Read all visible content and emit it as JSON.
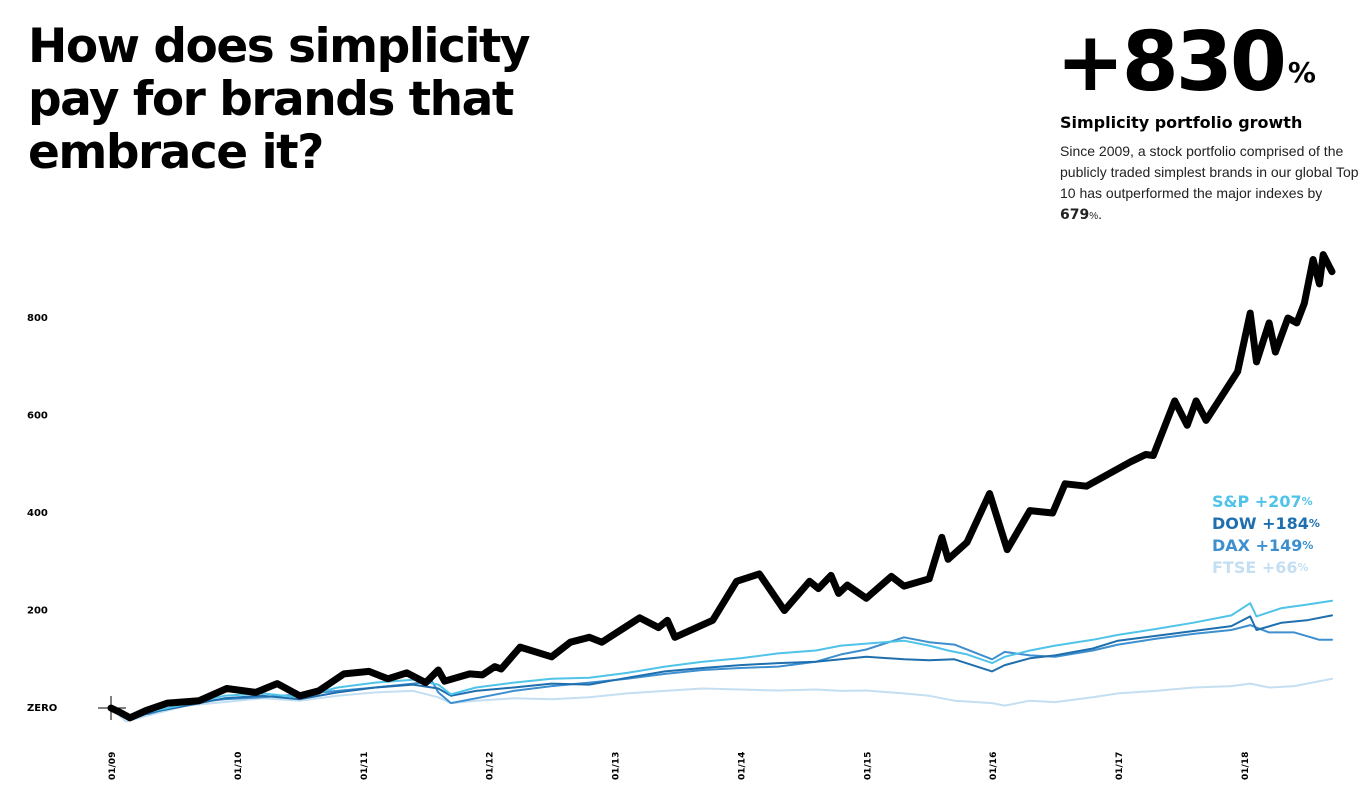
{
  "header": {
    "title": "How does simplicity pay for brands that embrace it?",
    "stat_value": "+830",
    "stat_unit": "%",
    "stat_label": "Simplicity portfolio growth",
    "description_pre": "Since 2009, a stock portfolio comprised of the publicly traded simplest brands in our global Top 10 has outperformed the major indexes by ",
    "description_value": "679",
    "description_unit": "%",
    "description_post": "."
  },
  "colors": {
    "portfolio": "#000000",
    "sp": "#4fc3e8",
    "dow": "#1f6fae",
    "dax": "#3d8fcf",
    "ftse": "#c4dff2"
  },
  "legend": [
    {
      "label": "S&P +207",
      "unit": "%",
      "color": "#4fc3e8"
    },
    {
      "label": "DOW +184",
      "unit": "%",
      "color": "#1f6fae"
    },
    {
      "label": "DAX +149",
      "unit": "%",
      "color": "#3d8fcf"
    },
    {
      "label": "FTSE +66",
      "unit": "%",
      "color": "#c4dff2"
    }
  ],
  "chart_data": {
    "type": "line",
    "x_ticks": [
      "01/09",
      "01/10",
      "01/11",
      "01/12",
      "01/13",
      "01/14",
      "01/15",
      "01/16",
      "01/17",
      "01/18"
    ],
    "y_ticks": [
      {
        "value": 0,
        "label": "ZERO"
      },
      {
        "value": 200,
        "label": "200"
      },
      {
        "value": 400,
        "label": "400"
      },
      {
        "value": 600,
        "label": "600"
      },
      {
        "value": 800,
        "label": "800"
      }
    ],
    "xlim": [
      2009.0,
      2018.7
    ],
    "ylim": [
      -60,
      930
    ],
    "grid": false,
    "legend_position": "right",
    "series": [
      {
        "key": "portfolio",
        "color": "#000000",
        "width": 7,
        "points": [
          [
            2009.0,
            0
          ],
          [
            2009.08,
            -10
          ],
          [
            2009.15,
            -20
          ],
          [
            2009.28,
            -5
          ],
          [
            2009.45,
            10
          ],
          [
            2009.7,
            15
          ],
          [
            2009.92,
            40
          ],
          [
            2010.15,
            32
          ],
          [
            2010.32,
            50
          ],
          [
            2010.5,
            25
          ],
          [
            2010.65,
            35
          ],
          [
            2010.85,
            70
          ],
          [
            2011.05,
            75
          ],
          [
            2011.2,
            60
          ],
          [
            2011.35,
            72
          ],
          [
            2011.5,
            52
          ],
          [
            2011.6,
            78
          ],
          [
            2011.65,
            55
          ],
          [
            2011.85,
            70
          ],
          [
            2011.95,
            68
          ],
          [
            2012.05,
            85
          ],
          [
            2012.1,
            80
          ],
          [
            2012.25,
            125
          ],
          [
            2012.5,
            105
          ],
          [
            2012.65,
            135
          ],
          [
            2012.8,
            145
          ],
          [
            2012.9,
            135
          ],
          [
            2013.05,
            160
          ],
          [
            2013.2,
            185
          ],
          [
            2013.35,
            165
          ],
          [
            2013.42,
            180
          ],
          [
            2013.48,
            145
          ],
          [
            2013.78,
            180
          ],
          [
            2013.97,
            260
          ],
          [
            2014.15,
            275
          ],
          [
            2014.35,
            200
          ],
          [
            2014.55,
            260
          ],
          [
            2014.62,
            245
          ],
          [
            2014.72,
            272
          ],
          [
            2014.78,
            235
          ],
          [
            2014.85,
            252
          ],
          [
            2015.0,
            225
          ],
          [
            2015.2,
            270
          ],
          [
            2015.3,
            250
          ],
          [
            2015.5,
            265
          ],
          [
            2015.6,
            350
          ],
          [
            2015.65,
            305
          ],
          [
            2015.8,
            340
          ],
          [
            2015.98,
            440
          ],
          [
            2016.12,
            325
          ],
          [
            2016.3,
            405
          ],
          [
            2016.48,
            400
          ],
          [
            2016.58,
            460
          ],
          [
            2016.75,
            455
          ],
          [
            2017.1,
            505
          ],
          [
            2017.22,
            520
          ],
          [
            2017.28,
            518
          ],
          [
            2017.45,
            630
          ],
          [
            2017.55,
            580
          ],
          [
            2017.62,
            630
          ],
          [
            2017.7,
            590
          ],
          [
            2017.95,
            690
          ],
          [
            2018.05,
            810
          ],
          [
            2018.1,
            710
          ],
          [
            2018.2,
            790
          ],
          [
            2018.25,
            730
          ],
          [
            2018.35,
            800
          ],
          [
            2018.42,
            790
          ],
          [
            2018.48,
            830
          ],
          [
            2018.55,
            920
          ],
          [
            2018.6,
            870
          ],
          [
            2018.63,
            930
          ],
          [
            2018.7,
            895
          ]
        ]
      },
      {
        "key": "sp",
        "color": "#4fc3e8",
        "width": 2,
        "points": [
          [
            2009.0,
            0
          ],
          [
            2009.12,
            -20
          ],
          [
            2009.3,
            -8
          ],
          [
            2009.6,
            8
          ],
          [
            2009.9,
            25
          ],
          [
            2010.2,
            30
          ],
          [
            2010.5,
            22
          ],
          [
            2010.8,
            42
          ],
          [
            2011.1,
            52
          ],
          [
            2011.4,
            58
          ],
          [
            2011.6,
            48
          ],
          [
            2011.7,
            28
          ],
          [
            2011.9,
            42
          ],
          [
            2012.2,
            52
          ],
          [
            2012.5,
            60
          ],
          [
            2012.8,
            62
          ],
          [
            2013.1,
            72
          ],
          [
            2013.4,
            85
          ],
          [
            2013.7,
            95
          ],
          [
            2014.0,
            102
          ],
          [
            2014.3,
            112
          ],
          [
            2014.6,
            118
          ],
          [
            2014.8,
            128
          ],
          [
            2015.0,
            132
          ],
          [
            2015.3,
            138
          ],
          [
            2015.5,
            128
          ],
          [
            2015.65,
            118
          ],
          [
            2015.8,
            110
          ],
          [
            2016.0,
            92
          ],
          [
            2016.1,
            105
          ],
          [
            2016.3,
            118
          ],
          [
            2016.5,
            128
          ],
          [
            2016.8,
            140
          ],
          [
            2017.0,
            150
          ],
          [
            2017.3,
            162
          ],
          [
            2017.6,
            175
          ],
          [
            2017.9,
            190
          ],
          [
            2018.05,
            215
          ],
          [
            2018.1,
            188
          ],
          [
            2018.3,
            205
          ],
          [
            2018.5,
            212
          ],
          [
            2018.7,
            220
          ]
        ]
      },
      {
        "key": "dow",
        "color": "#1f6fae",
        "width": 2,
        "points": [
          [
            2009.0,
            0
          ],
          [
            2009.15,
            -25
          ],
          [
            2009.3,
            -10
          ],
          [
            2009.6,
            5
          ],
          [
            2009.9,
            20
          ],
          [
            2010.2,
            25
          ],
          [
            2010.5,
            18
          ],
          [
            2010.8,
            32
          ],
          [
            2011.1,
            42
          ],
          [
            2011.4,
            48
          ],
          [
            2011.6,
            40
          ],
          [
            2011.7,
            25
          ],
          [
            2011.9,
            35
          ],
          [
            2012.2,
            42
          ],
          [
            2012.5,
            50
          ],
          [
            2012.8,
            48
          ],
          [
            2013.1,
            62
          ],
          [
            2013.4,
            75
          ],
          [
            2013.7,
            82
          ],
          [
            2014.0,
            88
          ],
          [
            2014.3,
            92
          ],
          [
            2014.6,
            95
          ],
          [
            2014.8,
            100
          ],
          [
            2015.0,
            105
          ],
          [
            2015.3,
            100
          ],
          [
            2015.5,
            98
          ],
          [
            2015.7,
            100
          ],
          [
            2016.0,
            75
          ],
          [
            2016.1,
            88
          ],
          [
            2016.3,
            102
          ],
          [
            2016.5,
            108
          ],
          [
            2016.8,
            122
          ],
          [
            2017.0,
            138
          ],
          [
            2017.3,
            148
          ],
          [
            2017.6,
            158
          ],
          [
            2017.9,
            168
          ],
          [
            2018.05,
            188
          ],
          [
            2018.1,
            160
          ],
          [
            2018.3,
            175
          ],
          [
            2018.5,
            180
          ],
          [
            2018.7,
            190
          ]
        ]
      },
      {
        "key": "dax",
        "color": "#3d8fcf",
        "width": 2,
        "points": [
          [
            2009.0,
            0
          ],
          [
            2009.1,
            -15
          ],
          [
            2009.3,
            -12
          ],
          [
            2009.6,
            10
          ],
          [
            2009.9,
            18
          ],
          [
            2010.2,
            22
          ],
          [
            2010.5,
            28
          ],
          [
            2010.8,
            35
          ],
          [
            2011.1,
            42
          ],
          [
            2011.4,
            50
          ],
          [
            2011.55,
            55
          ],
          [
            2011.6,
            32
          ],
          [
            2011.7,
            10
          ],
          [
            2011.9,
            20
          ],
          [
            2012.2,
            35
          ],
          [
            2012.5,
            45
          ],
          [
            2012.8,
            52
          ],
          [
            2013.1,
            60
          ],
          [
            2013.4,
            70
          ],
          [
            2013.7,
            78
          ],
          [
            2014.0,
            82
          ],
          [
            2014.3,
            85
          ],
          [
            2014.6,
            95
          ],
          [
            2014.8,
            110
          ],
          [
            2015.0,
            120
          ],
          [
            2015.3,
            145
          ],
          [
            2015.5,
            135
          ],
          [
            2015.7,
            130
          ],
          [
            2016.0,
            100
          ],
          [
            2016.1,
            115
          ],
          [
            2016.3,
            108
          ],
          [
            2016.5,
            105
          ],
          [
            2016.8,
            118
          ],
          [
            2017.0,
            130
          ],
          [
            2017.3,
            142
          ],
          [
            2017.6,
            152
          ],
          [
            2017.9,
            160
          ],
          [
            2018.05,
            170
          ],
          [
            2018.2,
            155
          ],
          [
            2018.4,
            155
          ],
          [
            2018.6,
            140
          ],
          [
            2018.7,
            140
          ]
        ]
      },
      {
        "key": "ftse",
        "color": "#c4dff2",
        "width": 2,
        "points": [
          [
            2009.0,
            0
          ],
          [
            2009.12,
            -28
          ],
          [
            2009.3,
            -15
          ],
          [
            2009.6,
            5
          ],
          [
            2009.9,
            12
          ],
          [
            2010.2,
            20
          ],
          [
            2010.5,
            15
          ],
          [
            2010.8,
            25
          ],
          [
            2011.1,
            32
          ],
          [
            2011.4,
            35
          ],
          [
            2011.6,
            22
          ],
          [
            2011.7,
            10
          ],
          [
            2011.9,
            15
          ],
          [
            2012.2,
            20
          ],
          [
            2012.5,
            18
          ],
          [
            2012.8,
            22
          ],
          [
            2013.1,
            30
          ],
          [
            2013.4,
            35
          ],
          [
            2013.7,
            40
          ],
          [
            2014.0,
            38
          ],
          [
            2014.3,
            36
          ],
          [
            2014.6,
            38
          ],
          [
            2014.8,
            35
          ],
          [
            2015.0,
            36
          ],
          [
            2015.3,
            30
          ],
          [
            2015.5,
            25
          ],
          [
            2015.7,
            15
          ],
          [
            2016.0,
            10
          ],
          [
            2016.1,
            5
          ],
          [
            2016.3,
            15
          ],
          [
            2016.5,
            12
          ],
          [
            2016.8,
            22
          ],
          [
            2017.0,
            30
          ],
          [
            2017.3,
            35
          ],
          [
            2017.6,
            42
          ],
          [
            2017.9,
            45
          ],
          [
            2018.05,
            50
          ],
          [
            2018.2,
            42
          ],
          [
            2018.4,
            45
          ],
          [
            2018.6,
            55
          ],
          [
            2018.7,
            60
          ]
        ]
      }
    ]
  }
}
